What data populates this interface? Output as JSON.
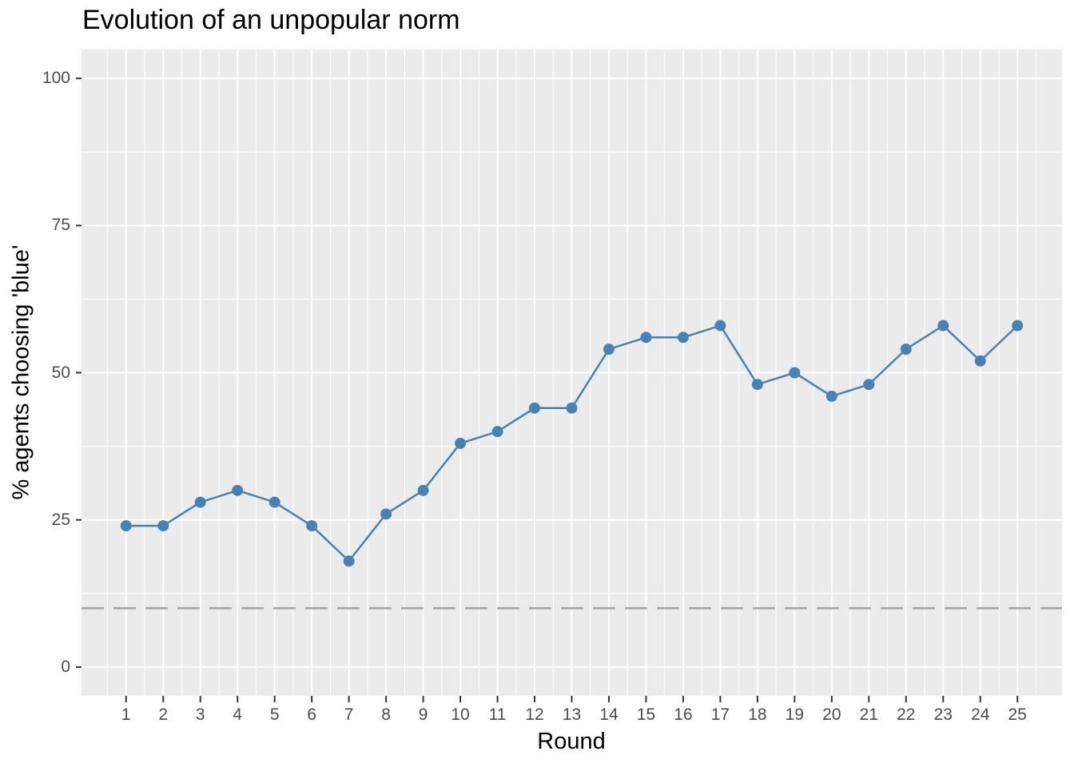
{
  "figure": {
    "title": "Evolution of an unpopular norm",
    "x_axis": {
      "label": "Round",
      "tick_labels": [
        "1",
        "2",
        "3",
        "4",
        "5",
        "6",
        "7",
        "8",
        "9",
        "10",
        "11",
        "12",
        "13",
        "14",
        "15",
        "16",
        "17",
        "18",
        "19",
        "20",
        "21",
        "22",
        "23",
        "24",
        "25"
      ]
    },
    "y_axis": {
      "label": "% agents choosing 'blue'",
      "tick_labels": [
        "0",
        "25",
        "50",
        "75",
        "100"
      ]
    }
  },
  "chart_data": {
    "type": "line",
    "title": "Evolution of an unpopular norm",
    "xlabel": "Round",
    "ylabel": "% agents choosing 'blue'",
    "x": [
      1,
      2,
      3,
      4,
      5,
      6,
      7,
      8,
      9,
      10,
      11,
      12,
      13,
      14,
      15,
      16,
      17,
      18,
      19,
      20,
      21,
      22,
      23,
      24,
      25
    ],
    "series": [
      {
        "name": "% agents choosing 'blue'",
        "values": [
          24,
          24,
          28,
          30,
          28,
          24,
          18,
          26,
          30,
          38,
          40,
          44,
          44,
          54,
          56,
          56,
          58,
          48,
          50,
          46,
          48,
          54,
          58,
          52,
          58
        ]
      }
    ],
    "reference_line": {
      "y": 10,
      "style": "dashed"
    },
    "xticks": [
      1,
      2,
      3,
      4,
      5,
      6,
      7,
      8,
      9,
      10,
      11,
      12,
      13,
      14,
      15,
      16,
      17,
      18,
      19,
      20,
      21,
      22,
      23,
      24,
      25
    ],
    "yticks": [
      0,
      25,
      50,
      75,
      100
    ],
    "xlim": [
      -0.2,
      26.2
    ],
    "ylim": [
      -4.9,
      104.9
    ],
    "grid": "major-and-minor",
    "legend": "none",
    "marker": "circle",
    "colors": {
      "line": "#4682b4",
      "point": "#4682b4",
      "reference_line": "#a8a8a8",
      "panel_background": "#ebebeb",
      "grid": "#ffffff",
      "tick_text": "#4d4d4d",
      "tick_mark": "#333333",
      "text": "#000000"
    }
  }
}
